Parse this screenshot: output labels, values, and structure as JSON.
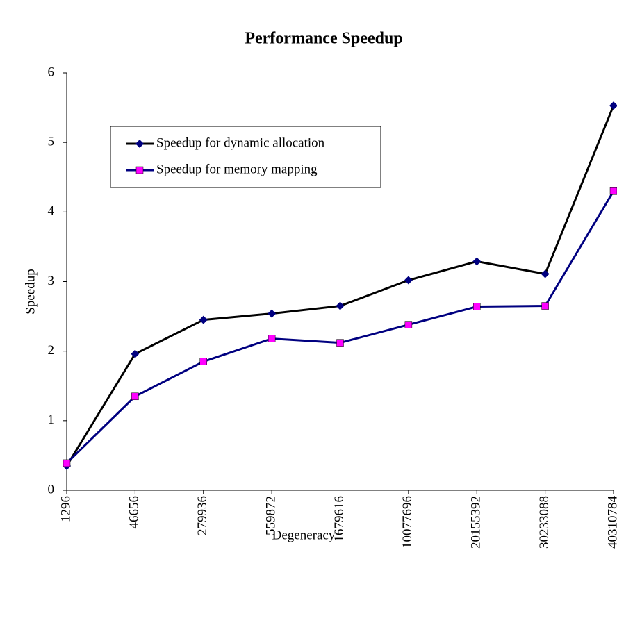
{
  "chart_data": {
    "type": "line",
    "title": "Performance Speedup",
    "x_label": "Degeneracy",
    "y_label": "Speedup",
    "categories": [
      "1296",
      "46656",
      "279936",
      "559872",
      "1679616",
      "10077696",
      "20155392",
      "30233088",
      "40310784"
    ],
    "series": [
      {
        "name": "Speedup for dynamic allocation",
        "color": "#000000",
        "marker_color": "#000080",
        "marker": "diamond",
        "values": [
          0.35,
          1.96,
          2.45,
          2.54,
          2.65,
          3.02,
          3.29,
          3.11,
          5.53
        ]
      },
      {
        "name": "Speedup for memory mapping",
        "color": "#000080",
        "marker_color": "#ff00ff",
        "marker": "square",
        "values": [
          0.39,
          1.35,
          1.85,
          2.18,
          2.12,
          2.38,
          2.64,
          2.65,
          4.3
        ]
      }
    ],
    "ylim": [
      0,
      6
    ],
    "yticks": [
      0,
      1,
      2,
      3,
      4,
      5,
      6
    ],
    "grid": false,
    "legend": "upper left"
  }
}
